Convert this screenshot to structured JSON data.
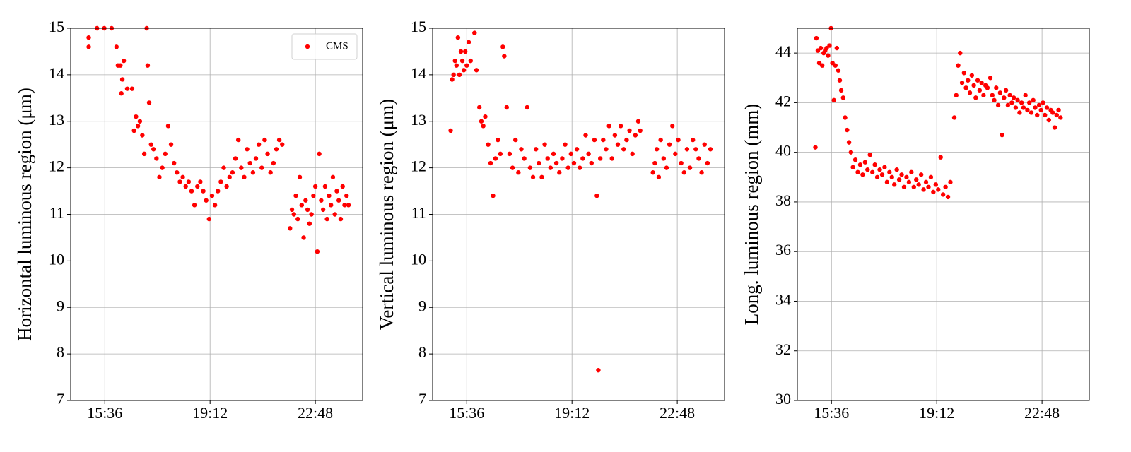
{
  "chart_data": [
    {
      "type": "scatter",
      "ylabel": "Horizontal luminous region (μm)",
      "legend": "upper right",
      "grid": true,
      "xlim": [
        866,
        1465
      ],
      "xticks": [
        {
          "value": 936,
          "label": "15:36"
        },
        {
          "value": 1152,
          "label": "19:12"
        },
        {
          "value": 1368,
          "label": "22:48"
        }
      ],
      "ylim": [
        7,
        15
      ],
      "yticks": [
        7,
        8,
        9,
        10,
        11,
        12,
        13,
        14,
        15
      ],
      "x": [
        903,
        903,
        920,
        935,
        950,
        960,
        963,
        968,
        972,
        975,
        970,
        982,
        992,
        996,
        1000,
        1004,
        1008,
        1013,
        1017,
        1022,
        1024,
        1027,
        1031,
        1036,
        1042,
        1048,
        1054,
        1060,
        1066,
        1072,
        1078,
        1084,
        1090,
        1096,
        1102,
        1108,
        1114,
        1120,
        1126,
        1132,
        1138,
        1144,
        1150,
        1156,
        1162,
        1168,
        1174,
        1180,
        1186,
        1192,
        1198,
        1204,
        1210,
        1216,
        1222,
        1228,
        1234,
        1240,
        1246,
        1252,
        1258,
        1264,
        1270,
        1276,
        1282,
        1288,
        1294,
        1300,
        1316,
        1320,
        1324,
        1328,
        1332,
        1336,
        1340,
        1344,
        1348,
        1352,
        1356,
        1360,
        1364,
        1368,
        1372,
        1376,
        1380,
        1384,
        1388,
        1392,
        1396,
        1400,
        1404,
        1408,
        1412,
        1416,
        1420,
        1424,
        1428,
        1432,
        1436
      ],
      "series": [
        {
          "name": "CMS",
          "color": "#ff0000",
          "values": [
            14.6,
            14.8,
            15.0,
            15.0,
            15.0,
            14.6,
            14.2,
            14.2,
            13.9,
            14.3,
            13.6,
            13.7,
            13.7,
            12.8,
            13.1,
            12.9,
            13.0,
            12.7,
            12.3,
            15.0,
            14.2,
            13.4,
            12.5,
            12.4,
            12.2,
            11.8,
            12.0,
            12.3,
            12.9,
            12.5,
            12.1,
            11.9,
            11.7,
            11.8,
            11.6,
            11.7,
            11.5,
            11.2,
            11.6,
            11.7,
            11.5,
            11.3,
            10.9,
            11.4,
            11.2,
            11.5,
            11.7,
            12.0,
            11.6,
            11.8,
            11.9,
            12.2,
            12.6,
            12.0,
            11.8,
            12.4,
            12.1,
            11.9,
            12.2,
            12.5,
            12.0,
            12.6,
            12.3,
            11.9,
            12.1,
            12.4,
            12.6,
            12.5,
            10.7,
            11.1,
            11.0,
            11.4,
            10.9,
            11.8,
            11.2,
            10.5,
            11.3,
            11.1,
            10.8,
            11.0,
            11.4,
            11.6,
            10.2,
            12.3,
            11.3,
            11.1,
            11.6,
            10.9,
            11.4,
            11.2,
            11.8,
            11.0,
            11.5,
            11.3,
            10.9,
            11.6,
            11.2,
            11.4,
            11.2
          ]
        }
      ]
    },
    {
      "type": "scatter",
      "ylabel": "Vertical luminous region (μm)",
      "grid": true,
      "xlim": [
        866,
        1465
      ],
      "xticks": [
        {
          "value": 936,
          "label": "15:36"
        },
        {
          "value": 1152,
          "label": "19:12"
        },
        {
          "value": 1368,
          "label": "22:48"
        }
      ],
      "ylim": [
        7,
        15
      ],
      "yticks": [
        7,
        8,
        9,
        10,
        11,
        12,
        13,
        14,
        15
      ],
      "x": [
        903,
        906,
        909,
        912,
        915,
        918,
        921,
        924,
        927,
        930,
        933,
        936,
        940,
        944,
        952,
        956,
        962,
        966,
        970,
        974,
        980,
        985,
        990,
        995,
        1000,
        1005,
        1010,
        1013,
        1018,
        1024,
        1030,
        1036,
        1042,
        1048,
        1054,
        1060,
        1066,
        1072,
        1078,
        1084,
        1090,
        1096,
        1102,
        1108,
        1114,
        1120,
        1126,
        1132,
        1138,
        1144,
        1150,
        1156,
        1162,
        1168,
        1174,
        1180,
        1186,
        1192,
        1198,
        1203,
        1206,
        1210,
        1216,
        1222,
        1228,
        1234,
        1240,
        1246,
        1252,
        1258,
        1264,
        1270,
        1276,
        1282,
        1288,
        1292,
        1318,
        1322,
        1326,
        1330,
        1334,
        1340,
        1346,
        1352,
        1358,
        1364,
        1370,
        1376,
        1382,
        1388,
        1394,
        1400,
        1406,
        1412,
        1418,
        1424,
        1430,
        1436
      ],
      "series": [
        {
          "color": "#ff0000",
          "values": [
            12.8,
            13.9,
            14.0,
            14.3,
            14.2,
            14.8,
            14.0,
            14.5,
            14.3,
            14.1,
            14.5,
            14.2,
            14.7,
            14.3,
            14.9,
            14.1,
            13.3,
            13.0,
            12.9,
            13.1,
            12.5,
            12.1,
            11.4,
            12.2,
            12.6,
            12.3,
            14.6,
            14.4,
            13.3,
            12.3,
            12.0,
            12.6,
            11.9,
            12.4,
            12.2,
            13.3,
            12.0,
            11.8,
            12.4,
            12.1,
            11.8,
            12.5,
            12.2,
            12.0,
            12.3,
            12.1,
            11.9,
            12.2,
            12.5,
            12.0,
            12.3,
            12.1,
            12.4,
            12.0,
            12.2,
            12.7,
            12.3,
            12.1,
            12.6,
            11.4,
            7.65,
            12.2,
            12.6,
            12.4,
            12.9,
            12.2,
            12.7,
            12.5,
            12.9,
            12.4,
            12.6,
            12.8,
            12.3,
            12.7,
            13.0,
            12.8,
            11.9,
            12.1,
            12.4,
            11.8,
            12.6,
            12.2,
            12.0,
            12.5,
            12.9,
            12.3,
            12.6,
            12.1,
            11.9,
            12.4,
            12.0,
            12.6,
            12.4,
            12.2,
            11.9,
            12.5,
            12.1,
            12.4
          ]
        }
      ]
    },
    {
      "type": "scatter",
      "ylabel": "Long. luminous region (mm)",
      "grid": true,
      "xlim": [
        866,
        1465
      ],
      "xticks": [
        {
          "value": 936,
          "label": "15:36"
        },
        {
          "value": 1152,
          "label": "19:12"
        },
        {
          "value": 1368,
          "label": "22:48"
        }
      ],
      "ylim": [
        30,
        45
      ],
      "yticks": [
        30,
        32,
        34,
        36,
        38,
        40,
        42,
        44
      ],
      "x": [
        903,
        905,
        908,
        911,
        914,
        917,
        920,
        923,
        926,
        929,
        932,
        935,
        938,
        941,
        944,
        947,
        950,
        953,
        956,
        960,
        964,
        968,
        972,
        976,
        980,
        985,
        990,
        995,
        1000,
        1005,
        1010,
        1015,
        1020,
        1025,
        1030,
        1035,
        1040,
        1045,
        1050,
        1055,
        1060,
        1065,
        1070,
        1075,
        1080,
        1085,
        1090,
        1095,
        1100,
        1105,
        1110,
        1115,
        1120,
        1125,
        1130,
        1135,
        1140,
        1145,
        1150,
        1155,
        1160,
        1165,
        1170,
        1175,
        1180,
        1188,
        1192,
        1196,
        1200,
        1204,
        1208,
        1212,
        1216,
        1220,
        1224,
        1228,
        1232,
        1236,
        1240,
        1244,
        1248,
        1252,
        1256,
        1262,
        1266,
        1270,
        1274,
        1278,
        1282,
        1286,
        1290,
        1294,
        1298,
        1302,
        1306,
        1310,
        1314,
        1318,
        1322,
        1326,
        1330,
        1334,
        1338,
        1342,
        1346,
        1350,
        1354,
        1358,
        1362,
        1366,
        1370,
        1374,
        1378,
        1382,
        1386,
        1390,
        1394,
        1398,
        1402,
        1406
      ],
      "series": [
        {
          "color": "#ff0000",
          "values": [
            40.2,
            44.6,
            44.1,
            43.6,
            44.2,
            43.5,
            44.0,
            44.1,
            44.2,
            43.9,
            44.3,
            45.0,
            43.6,
            42.1,
            43.5,
            44.2,
            43.3,
            42.9,
            42.5,
            42.2,
            41.4,
            40.9,
            40.4,
            40.0,
            39.4,
            39.7,
            39.2,
            39.5,
            39.1,
            39.6,
            39.3,
            39.9,
            39.2,
            39.5,
            39.0,
            39.3,
            39.1,
            39.4,
            38.8,
            39.2,
            39.0,
            38.7,
            39.3,
            38.9,
            39.1,
            38.6,
            39.0,
            38.8,
            39.2,
            38.6,
            38.9,
            38.7,
            39.1,
            38.5,
            38.8,
            38.6,
            39.0,
            38.4,
            38.7,
            38.5,
            39.8,
            38.3,
            38.6,
            38.2,
            38.8,
            41.4,
            42.3,
            43.5,
            44.0,
            42.8,
            43.2,
            42.6,
            42.9,
            42.4,
            43.1,
            42.7,
            42.2,
            42.9,
            42.5,
            42.8,
            42.3,
            42.7,
            42.6,
            43.0,
            42.3,
            42.1,
            42.6,
            41.9,
            42.4,
            40.7,
            42.2,
            42.5,
            41.9,
            42.3,
            42.0,
            42.2,
            41.8,
            42.1,
            41.6,
            42.0,
            41.8,
            42.3,
            41.7,
            42.0,
            41.6,
            42.1,
            41.8,
            41.5,
            41.9,
            41.7,
            42.0,
            41.5,
            41.8,
            41.3,
            41.7,
            41.6,
            41.0,
            41.5,
            41.7,
            41.4
          ]
        }
      ]
    }
  ]
}
